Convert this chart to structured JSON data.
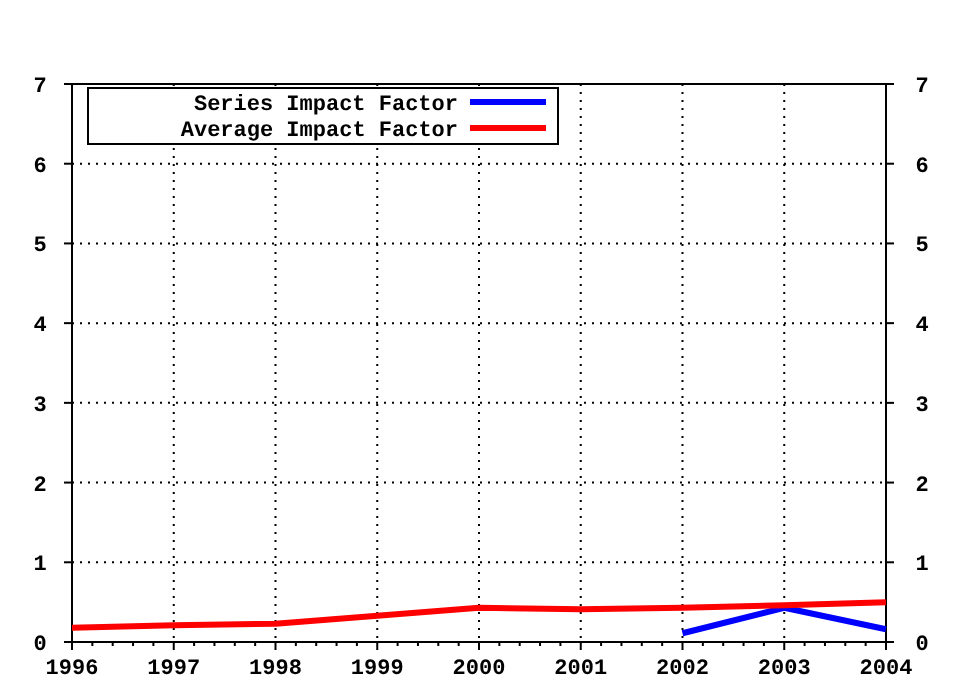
{
  "chart_data": {
    "type": "line",
    "x": [
      1996,
      1997,
      1998,
      1999,
      2000,
      2001,
      2002,
      2003,
      2004
    ],
    "series": [
      {
        "name": "Series Impact Factor",
        "color": "#0000ff",
        "values": [
          null,
          null,
          null,
          null,
          null,
          null,
          0.11,
          0.43,
          0.16
        ]
      },
      {
        "name": "Average Impact Factor",
        "color": "#ff0000",
        "values": [
          0.18,
          0.21,
          0.23,
          0.33,
          0.43,
          0.41,
          0.43,
          0.46,
          0.5
        ]
      }
    ],
    "xlim": [
      1996,
      2004
    ],
    "xticks": [
      1996,
      1997,
      1998,
      1999,
      2000,
      2001,
      2002,
      2003,
      2004
    ],
    "ylim": [
      0,
      7
    ],
    "yticks": [
      0,
      1,
      2,
      3,
      4,
      5,
      6,
      7
    ],
    "y2lim": [
      0,
      7
    ],
    "y2ticks": [
      0,
      1,
      2,
      3,
      4,
      5,
      6,
      7
    ],
    "grid": true,
    "legend": "top left",
    "marker": "none",
    "line_style": "solid"
  }
}
